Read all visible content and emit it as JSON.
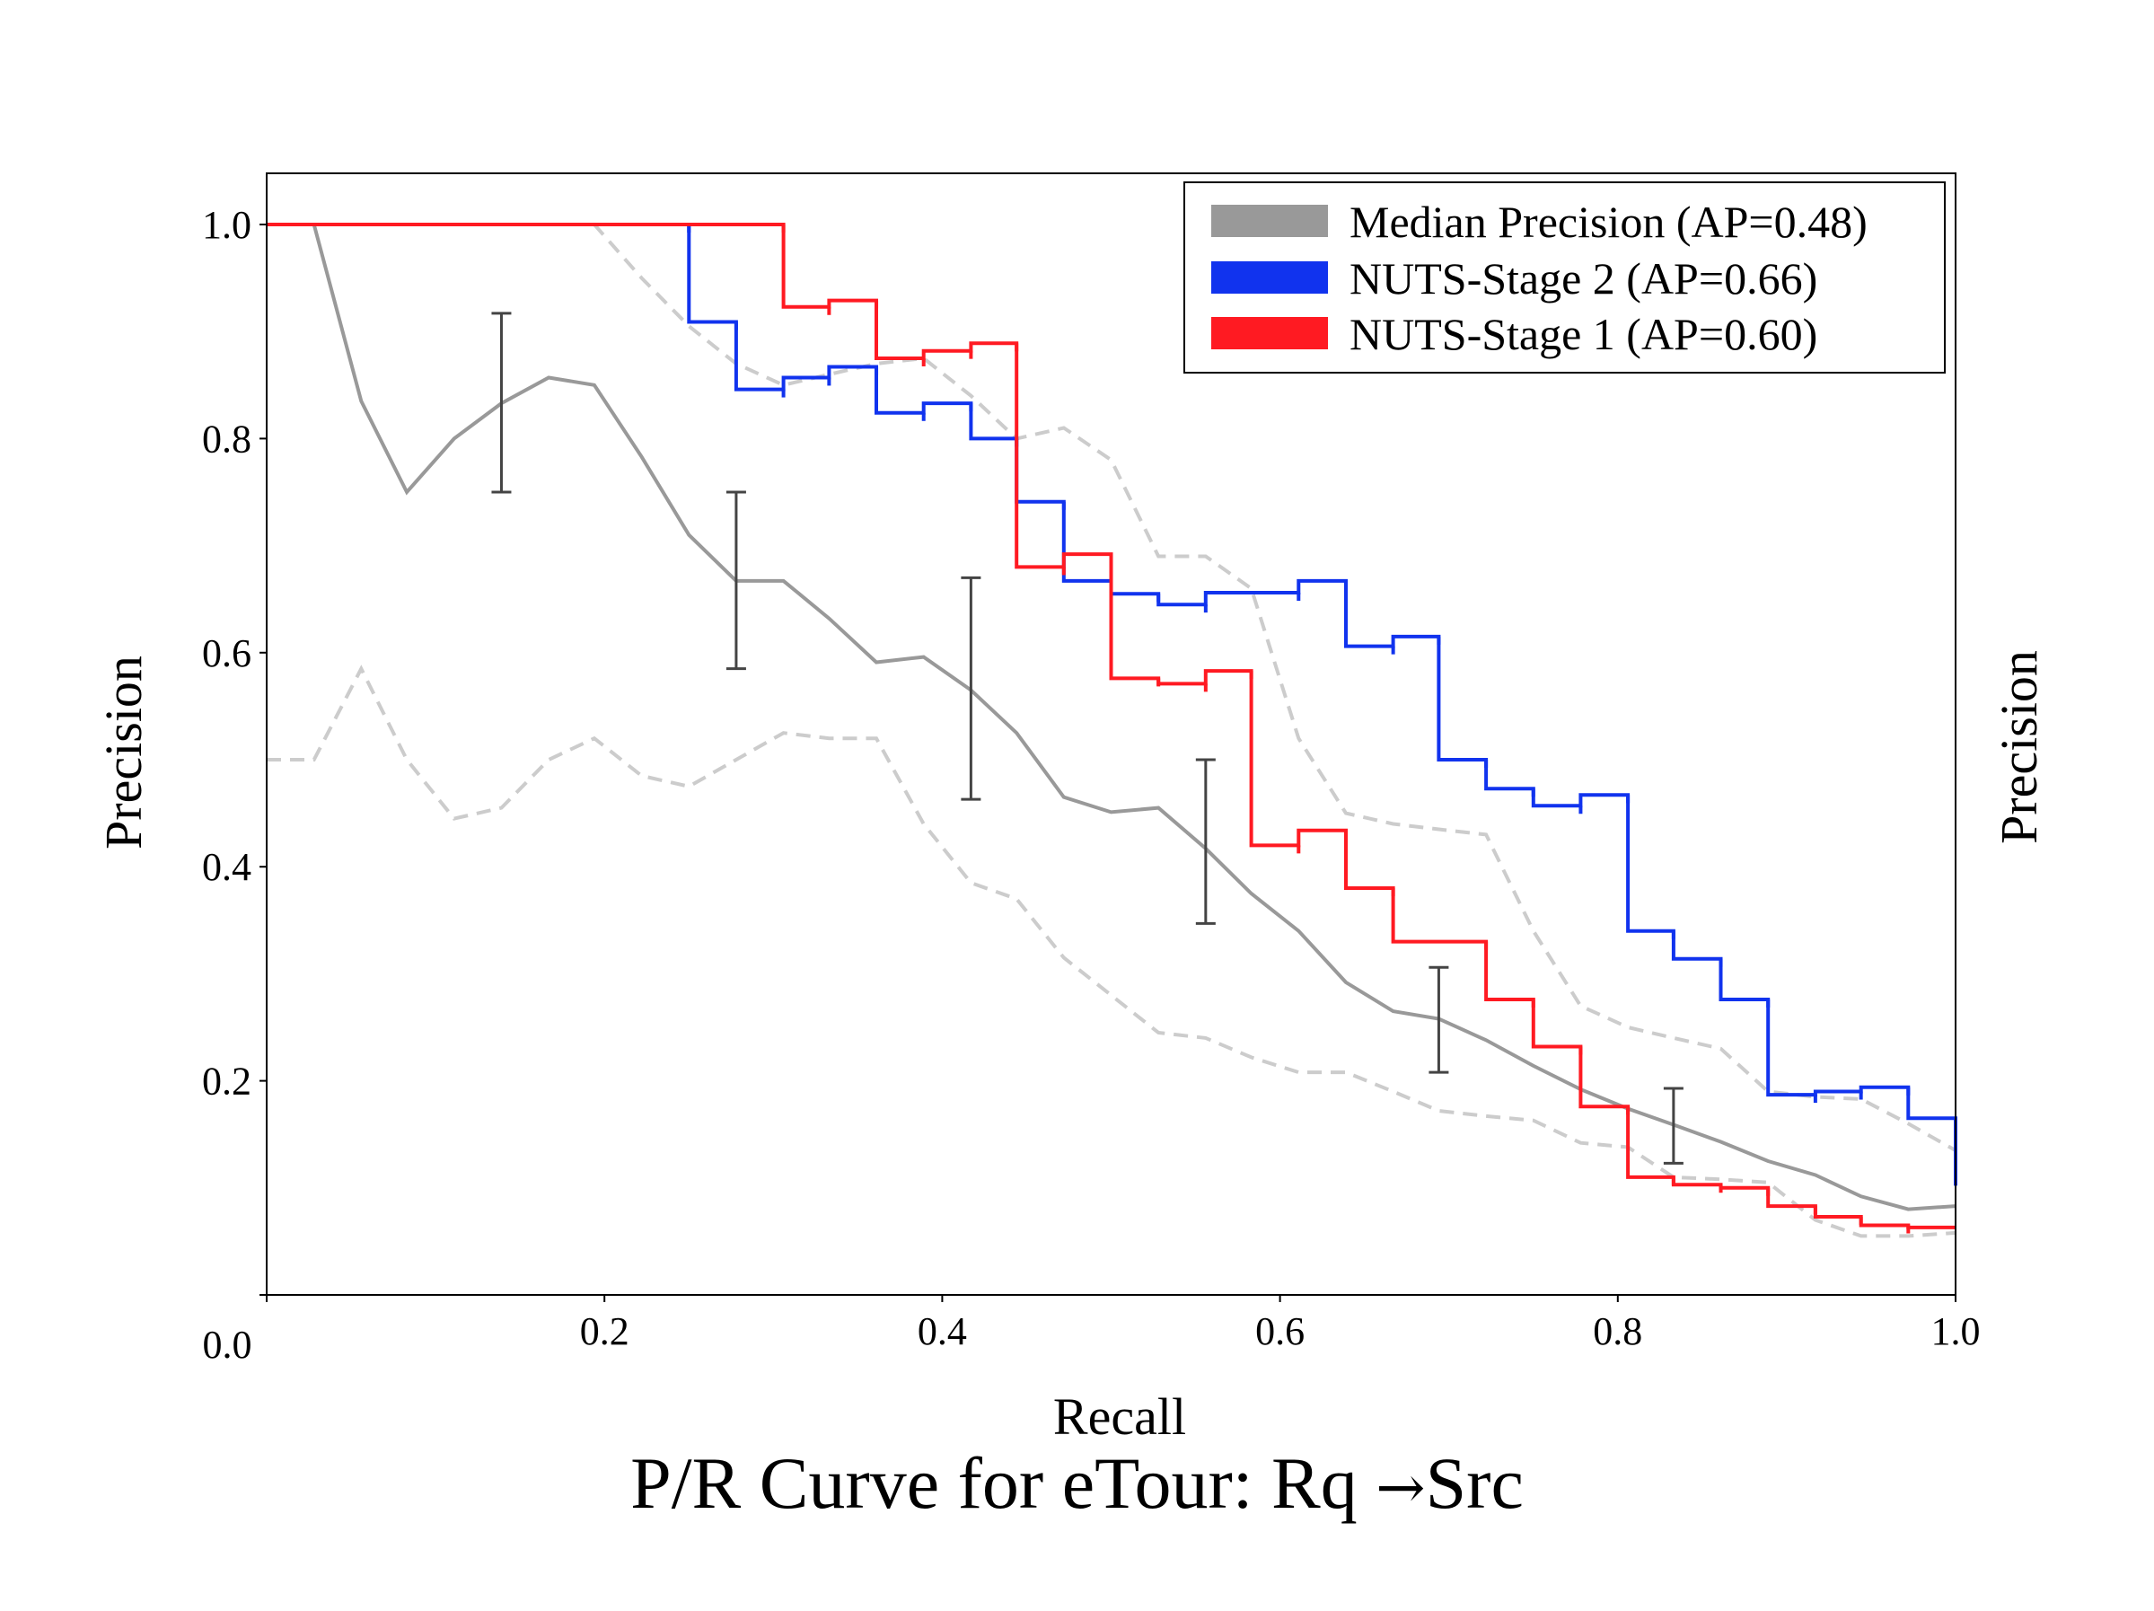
{
  "chart_data": {
    "type": "line",
    "title": "P/R Curve for eTour: Rq",
    "title_arrow": "→",
    "title_target": "Src",
    "xlabel": "Recall",
    "ylabel": "Precision",
    "ylabel_right": "Precision",
    "xlim": [
      0,
      1
    ],
    "ylim": [
      0,
      1.05
    ],
    "x_ticks": [
      "0.0",
      "0.2",
      "0.4",
      "0.6",
      "0.8",
      "1.0"
    ],
    "y_ticks": [
      "0.2",
      "0.4",
      "0.6",
      "0.8",
      "1.0"
    ],
    "legend": "top-right",
    "colors": {
      "median": "#999999",
      "stage2": "#1133ee",
      "stage1": "#ff1a22",
      "band": "#cccccc",
      "error_bar": "#444444"
    },
    "series": [
      {
        "name": "Median Precision (AP=0.48)",
        "style": "line",
        "x": [
          0,
          0.028,
          0.056,
          0.083,
          0.111,
          0.139,
          0.167,
          0.194,
          0.222,
          0.25,
          0.278,
          0.306,
          0.333,
          0.361,
          0.389,
          0.417,
          0.444,
          0.472,
          0.5,
          0.528,
          0.556,
          0.583,
          0.611,
          0.639,
          0.667,
          0.694,
          0.722,
          0.75,
          0.778,
          0.806,
          0.833,
          0.861,
          0.889,
          0.917,
          0.944,
          0.972,
          1.0
        ],
        "y": [
          1.0,
          1.0,
          0.835,
          0.75,
          0.8,
          0.833,
          0.857,
          0.85,
          0.783,
          0.71,
          0.667,
          0.667,
          0.632,
          0.591,
          0.596,
          0.565,
          0.525,
          0.465,
          0.451,
          0.455,
          0.417,
          0.375,
          0.34,
          0.292,
          0.265,
          0.258,
          0.238,
          0.214,
          0.192,
          0.174,
          0.159,
          0.143,
          0.125,
          0.112,
          0.092,
          0.08,
          0.083
        ]
      },
      {
        "name": "NUTS-Stage 2 (AP=0.66)",
        "style": "step",
        "x": [
          0,
          0.25,
          0.278,
          0.306,
          0.333,
          0.361,
          0.389,
          0.417,
          0.444,
          0.472,
          0.5,
          0.528,
          0.556,
          0.611,
          0.639,
          0.667,
          0.694,
          0.722,
          0.75,
          0.778,
          0.806,
          0.833,
          0.861,
          0.889,
          0.917,
          0.944,
          0.972,
          1.0
        ],
        "y": [
          1.0,
          0.909,
          0.846,
          0.857,
          0.867,
          0.824,
          0.833,
          0.8,
          0.741,
          0.667,
          0.655,
          0.645,
          0.656,
          0.667,
          0.606,
          0.615,
          0.5,
          0.473,
          0.457,
          0.467,
          0.34,
          0.314,
          0.276,
          0.187,
          0.19,
          0.194,
          0.165,
          0.102
        ]
      },
      {
        "name": "NUTS-Stage 1 (AP=0.60)",
        "style": "step",
        "x": [
          0,
          0.306,
          0.333,
          0.361,
          0.389,
          0.417,
          0.444,
          0.472,
          0.5,
          0.528,
          0.556,
          0.583,
          0.611,
          0.639,
          0.667,
          0.722,
          0.75,
          0.778,
          0.806,
          0.833,
          0.861,
          0.889,
          0.917,
          0.944,
          0.972,
          1.0
        ],
        "y": [
          1.0,
          0.923,
          0.929,
          0.875,
          0.882,
          0.889,
          0.68,
          0.692,
          0.576,
          0.571,
          0.583,
          0.42,
          0.434,
          0.38,
          0.33,
          0.276,
          0.232,
          0.176,
          0.11,
          0.103,
          0.1,
          0.083,
          0.073,
          0.065,
          0.063,
          0.063
        ]
      }
    ],
    "band_upper": {
      "x": [
        0,
        0.194,
        0.222,
        0.25,
        0.278,
        0.306,
        0.333,
        0.361,
        0.389,
        0.417,
        0.444,
        0.472,
        0.5,
        0.528,
        0.556,
        0.583,
        0.611,
        0.639,
        0.667,
        0.694,
        0.722,
        0.75,
        0.778,
        0.806,
        0.833,
        0.861,
        0.889,
        0.917,
        0.944,
        0.972,
        1.0
      ],
      "y": [
        1.0,
        1.0,
        0.95,
        0.905,
        0.87,
        0.85,
        0.86,
        0.87,
        0.875,
        0.84,
        0.8,
        0.81,
        0.78,
        0.69,
        0.69,
        0.66,
        0.52,
        0.45,
        0.44,
        0.435,
        0.43,
        0.34,
        0.27,
        0.25,
        0.24,
        0.23,
        0.19,
        0.185,
        0.183,
        0.16,
        0.135
      ]
    },
    "band_lower": {
      "x": [
        0,
        0.028,
        0.056,
        0.083,
        0.111,
        0.139,
        0.167,
        0.194,
        0.222,
        0.25,
        0.278,
        0.306,
        0.333,
        0.361,
        0.389,
        0.417,
        0.444,
        0.472,
        0.5,
        0.528,
        0.556,
        0.583,
        0.611,
        0.639,
        0.667,
        0.694,
        0.722,
        0.75,
        0.778,
        0.806,
        0.833,
        0.861,
        0.889,
        0.917,
        0.944,
        0.972,
        1.0
      ],
      "y": [
        0.5,
        0.5,
        0.585,
        0.5,
        0.445,
        0.455,
        0.5,
        0.52,
        0.485,
        0.475,
        0.5,
        0.525,
        0.52,
        0.52,
        0.44,
        0.385,
        0.37,
        0.315,
        0.28,
        0.245,
        0.24,
        0.222,
        0.208,
        0.208,
        0.19,
        0.172,
        0.167,
        0.163,
        0.142,
        0.138,
        0.11,
        0.108,
        0.105,
        0.07,
        0.055,
        0.055,
        0.058
      ]
    },
    "error_bars": [
      {
        "x": 0.139,
        "low": 0.75,
        "high": 0.917
      },
      {
        "x": 0.278,
        "low": 0.585,
        "high": 0.75
      },
      {
        "x": 0.417,
        "low": 0.463,
        "high": 0.67
      },
      {
        "x": 0.556,
        "low": 0.347,
        "high": 0.5
      },
      {
        "x": 0.694,
        "low": 0.208,
        "high": 0.306
      },
      {
        "x": 0.833,
        "low": 0.123,
        "high": 0.193
      }
    ]
  }
}
